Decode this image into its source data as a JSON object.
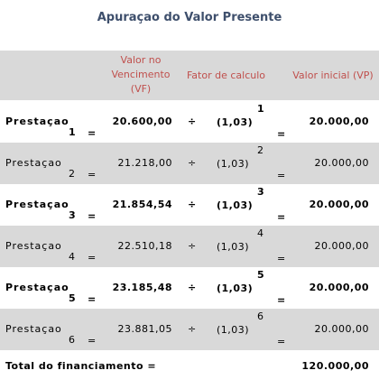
{
  "title": "Apuraçao do Valor Presente",
  "header": {
    "vf_line1": "Valor no",
    "vf_line2": "Vencimento",
    "vf_line3": "(VF)",
    "fator": "Fator de calculo",
    "vp": "Valor inicial (VP)"
  },
  "rows": [
    {
      "label": "Prestaçao",
      "num": "1",
      "eq1": "=",
      "vf": "20.600,00",
      "op": "÷",
      "rate": "(1,03)",
      "exp": "1",
      "eq2": "=",
      "vp": "20.000,00"
    },
    {
      "label": "Prestaçao",
      "num": "2",
      "eq1": "=",
      "vf": "21.218,00",
      "op": "÷",
      "rate": "(1,03)",
      "exp": "2",
      "eq2": "=",
      "vp": "20.000,00"
    },
    {
      "label": "Prestaçao",
      "num": "3",
      "eq1": "=",
      "vf": "21.854,54",
      "op": "÷",
      "rate": "(1,03)",
      "exp": "3",
      "eq2": "=",
      "vp": "20.000,00"
    },
    {
      "label": "Prestaçao",
      "num": "4",
      "eq1": "=",
      "vf": "22.510,18",
      "op": "÷",
      "rate": "(1,03)",
      "exp": "4",
      "eq2": "=",
      "vp": "20.000,00"
    },
    {
      "label": "Prestaçao",
      "num": "5",
      "eq1": "=",
      "vf": "23.185,48",
      "op": "÷",
      "rate": "(1,03)",
      "exp": "5",
      "eq2": "=",
      "vp": "20.000,00"
    },
    {
      "label": "Prestaçao",
      "num": "6",
      "eq1": "=",
      "vf": "23.881,05",
      "op": "÷",
      "rate": "(1,03)",
      "exp": "6",
      "eq2": "=",
      "vp": "20.000,00"
    }
  ],
  "total": {
    "label": "Total do financiamento =",
    "value": "120.000,00"
  }
}
